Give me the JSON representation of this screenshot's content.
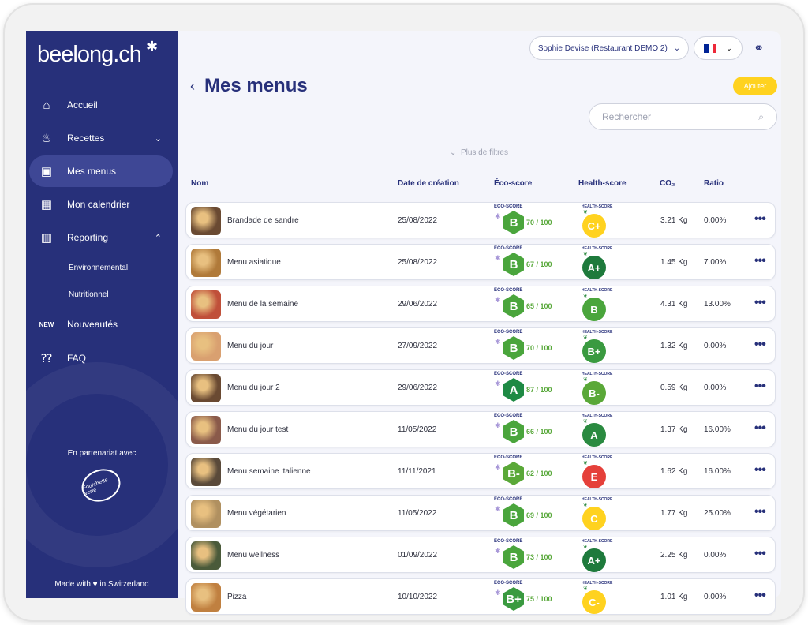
{
  "sidebar": {
    "logo": "beelong.ch",
    "items": [
      {
        "label": "Accueil",
        "icon": "home-icon",
        "glyph": "⌂"
      },
      {
        "label": "Recettes",
        "icon": "pot-icon",
        "glyph": "♨",
        "chevron": "⌄"
      },
      {
        "label": "Mes menus",
        "icon": "book-icon",
        "glyph": "▣",
        "active": true
      },
      {
        "label": "Mon calendrier",
        "icon": "calendar-icon",
        "glyph": "▦"
      },
      {
        "label": "Reporting",
        "icon": "chart-icon",
        "glyph": "▥",
        "chevron": "⌃"
      }
    ],
    "subitems": [
      "Environnemental",
      "Nutritionnel"
    ],
    "items2": [
      {
        "label": "Nouveautés",
        "icon": "new-icon",
        "glyph": "NEW"
      },
      {
        "label": "FAQ",
        "icon": "faq-icon",
        "glyph": "⁇"
      }
    ],
    "partner_text": "En partenariat avec",
    "partner_logo_text": "Fourchette verte",
    "made_with": "Made with ♥ in Switzerland"
  },
  "header": {
    "user": "Sophie Devise (Restaurant DEMO 2)",
    "flag_colors": [
      "#002395",
      "#ffffff",
      "#ed2939"
    ]
  },
  "page": {
    "title": "Mes menus",
    "add_label": "Ajouter",
    "search_placeholder": "Rechercher",
    "more_filters": "Plus de filtres"
  },
  "table": {
    "columns": [
      "Nom",
      "Date de création",
      "Éco-score",
      "Health-score",
      "CO₂",
      "Ratio"
    ],
    "eco_label": "ECO-SCORE",
    "health_label": "HEALTH-SCORE",
    "rows": [
      {
        "name": "Brandade de sandre",
        "date": "25/08/2022",
        "eco": "B",
        "eco_score": "70 / 100",
        "health": "C+",
        "co2": "3.21 Kg",
        "ratio": "0.00%",
        "thumb": "#6a4a32"
      },
      {
        "name": "Menu asiatique",
        "date": "25/08/2022",
        "eco": "B",
        "eco_score": "67 / 100",
        "health": "A+",
        "co2": "1.45 Kg",
        "ratio": "7.00%",
        "thumb": "#b07a3a"
      },
      {
        "name": "Menu de la semaine",
        "date": "29/06/2022",
        "eco": "B",
        "eco_score": "65 / 100",
        "health": "B",
        "co2": "4.31 Kg",
        "ratio": "13.00%",
        "thumb": "#c0503a"
      },
      {
        "name": "Menu du jour",
        "date": "27/09/2022",
        "eco": "B",
        "eco_score": "70 / 100",
        "health": "B+",
        "co2": "1.32 Kg",
        "ratio": "0.00%",
        "thumb": "#d9a070"
      },
      {
        "name": "Menu du jour 2",
        "date": "29/06/2022",
        "eco": "A",
        "eco_score": "87 / 100",
        "health": "B-",
        "co2": "0.59 Kg",
        "ratio": "0.00%",
        "thumb": "#6a4a32"
      },
      {
        "name": "Menu du jour test",
        "date": "11/05/2022",
        "eco": "B",
        "eco_score": "66 / 100",
        "health": "A",
        "co2": "1.37 Kg",
        "ratio": "16.00%",
        "thumb": "#8a5a4a"
      },
      {
        "name": "Menu semaine italienne",
        "date": "11/11/2021",
        "eco": "B-",
        "eco_score": "62 / 100",
        "health": "E",
        "co2": "1.62 Kg",
        "ratio": "16.00%",
        "thumb": "#5a4a3a"
      },
      {
        "name": "Menu végétarien",
        "date": "11/05/2022",
        "eco": "B",
        "eco_score": "69 / 100",
        "health": "C",
        "co2": "1.77 Kg",
        "ratio": "25.00%",
        "thumb": "#b09060"
      },
      {
        "name": "Menu wellness",
        "date": "01/09/2022",
        "eco": "B",
        "eco_score": "73 / 100",
        "health": "A+",
        "co2": "2.25 Kg",
        "ratio": "0.00%",
        "thumb": "#4a5a3a"
      },
      {
        "name": "Pizza",
        "date": "10/10/2022",
        "eco": "B+",
        "eco_score": "75 / 100",
        "health": "C-",
        "co2": "1.01 Kg",
        "ratio": "0.00%",
        "thumb": "#c08040"
      }
    ]
  },
  "colors": {
    "eco": {
      "A": "#1e8a44",
      "B+": "#3a9a40",
      "B": "#4aa53c",
      "B-": "#5aa838"
    },
    "health": {
      "A+": "#1e7a3c",
      "A": "#2a8a40",
      "B+": "#3a9a40",
      "B": "#4aa53c",
      "B-": "#5aa838",
      "C+": "#ffd21f",
      "C": "#ffd21f",
      "C-": "#ffd21f",
      "E": "#e5403a"
    }
  }
}
